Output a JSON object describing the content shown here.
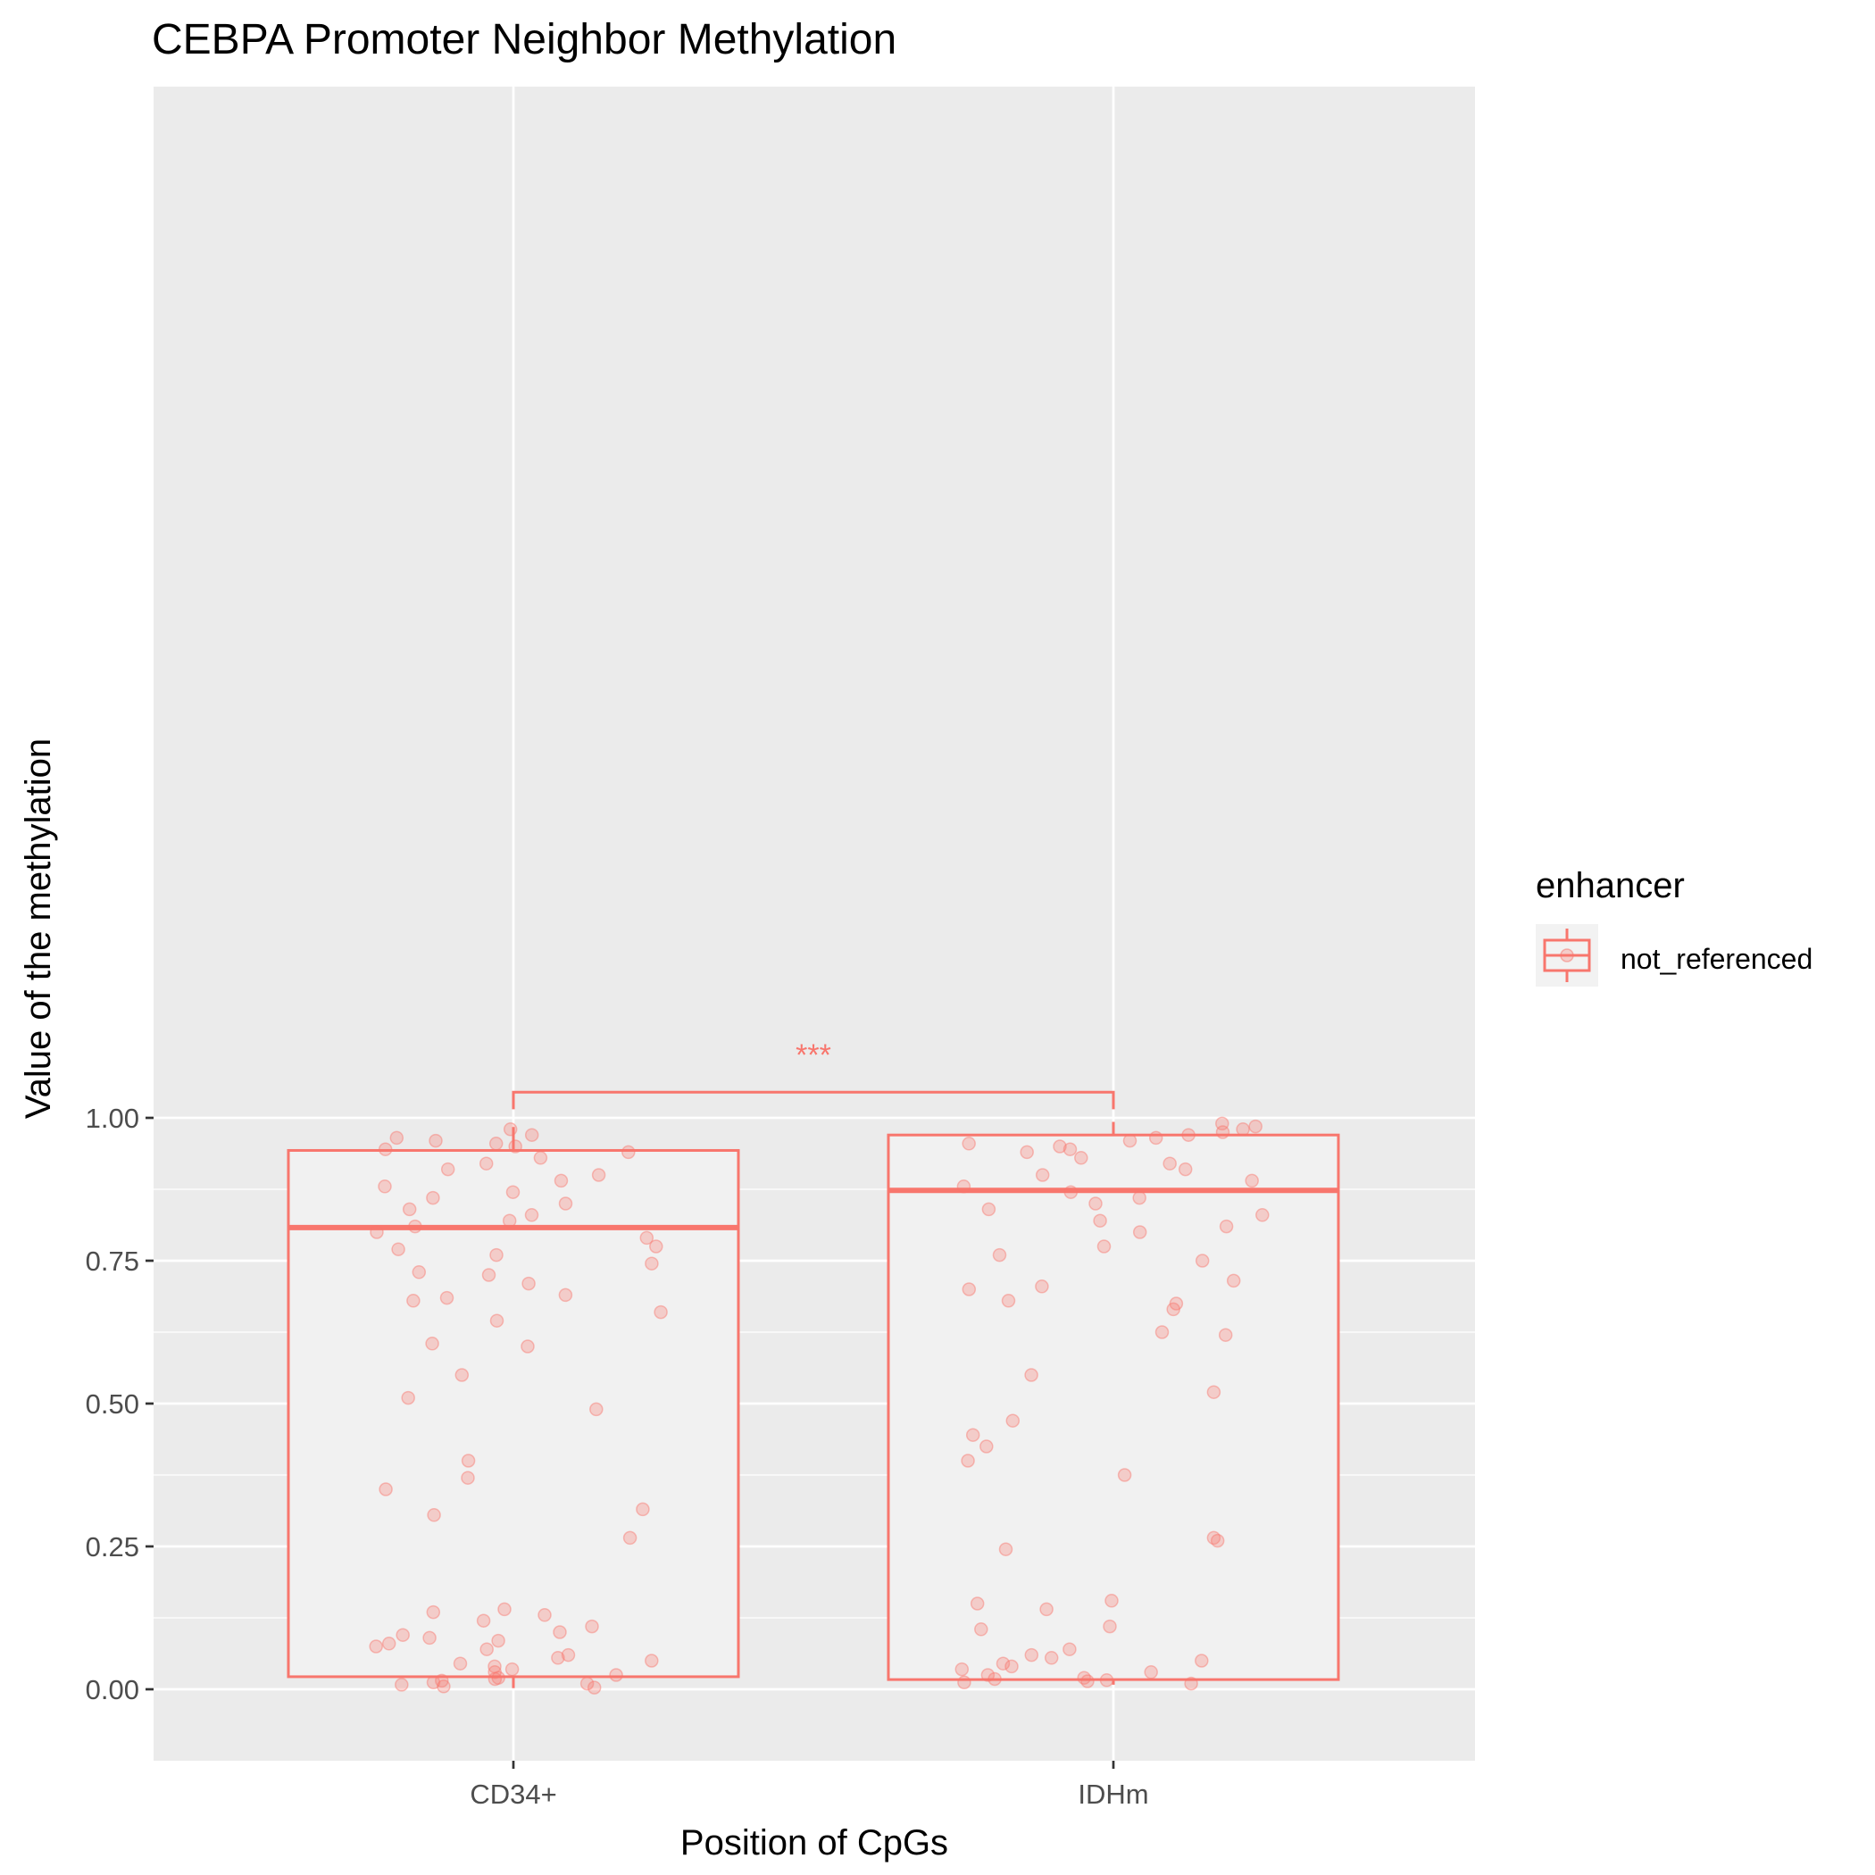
{
  "chart_data": {
    "type": "boxplot-jitter",
    "title": "CEBPA Promoter Neighbor Methylation",
    "xlabel": "Position of CpGs",
    "ylabel": "Value of the methylation",
    "ylim": [
      -0.05,
      1.09
    ],
    "y_ticks": [
      0.0,
      0.25,
      0.5,
      0.75,
      1.0
    ],
    "y_tick_labels": [
      "0.00",
      "0.25",
      "0.50",
      "0.75",
      "1.00"
    ],
    "categories": [
      "CD34+",
      "IDHm"
    ],
    "grid": true,
    "legend": {
      "position": "right",
      "title": "enhancer",
      "entries": [
        "not_referenced"
      ]
    },
    "colors": {
      "series": "#F8766D",
      "panel": "#EBEBEB",
      "grid": "#FFFFFF"
    },
    "boxes": [
      {
        "category": "CD34+",
        "series": "not_referenced",
        "min": 0.002,
        "q1": 0.022,
        "median": 0.808,
        "q3": 0.943,
        "max": 0.984
      },
      {
        "category": "IDHm",
        "series": "not_referenced",
        "min": 0.008,
        "q1": 0.017,
        "median": 0.873,
        "q3": 0.97,
        "max": 0.993
      }
    ],
    "significance": {
      "groups": [
        "CD34+",
        "IDHm"
      ],
      "label": "***",
      "y": 1.045
    },
    "points": {
      "CD34+": [
        0.98,
        0.97,
        0.965,
        0.96,
        0.955,
        0.95,
        0.945,
        0.94,
        0.93,
        0.92,
        0.91,
        0.9,
        0.89,
        0.88,
        0.87,
        0.86,
        0.85,
        0.84,
        0.83,
        0.82,
        0.81,
        0.8,
        0.79,
        0.775,
        0.77,
        0.76,
        0.745,
        0.73,
        0.725,
        0.71,
        0.69,
        0.685,
        0.68,
        0.66,
        0.645,
        0.605,
        0.6,
        0.55,
        0.51,
        0.49,
        0.4,
        0.37,
        0.35,
        0.315,
        0.305,
        0.265,
        0.14,
        0.135,
        0.13,
        0.12,
        0.11,
        0.1,
        0.095,
        0.09,
        0.085,
        0.08,
        0.075,
        0.07,
        0.06,
        0.055,
        0.05,
        0.045,
        0.04,
        0.035,
        0.03,
        0.025,
        0.02,
        0.018,
        0.015,
        0.012,
        0.01,
        0.008,
        0.005,
        0.003
      ],
      "IDHm": [
        0.99,
        0.985,
        0.98,
        0.975,
        0.97,
        0.965,
        0.96,
        0.955,
        0.95,
        0.945,
        0.94,
        0.93,
        0.92,
        0.91,
        0.9,
        0.89,
        0.88,
        0.87,
        0.86,
        0.85,
        0.84,
        0.83,
        0.82,
        0.81,
        0.8,
        0.775,
        0.76,
        0.75,
        0.715,
        0.705,
        0.7,
        0.68,
        0.675,
        0.665,
        0.625,
        0.62,
        0.55,
        0.52,
        0.47,
        0.445,
        0.425,
        0.4,
        0.375,
        0.265,
        0.26,
        0.245,
        0.155,
        0.15,
        0.14,
        0.11,
        0.105,
        0.07,
        0.06,
        0.055,
        0.05,
        0.045,
        0.04,
        0.035,
        0.03,
        0.025,
        0.02,
        0.018,
        0.016,
        0.014,
        0.012,
        0.01
      ]
    }
  }
}
